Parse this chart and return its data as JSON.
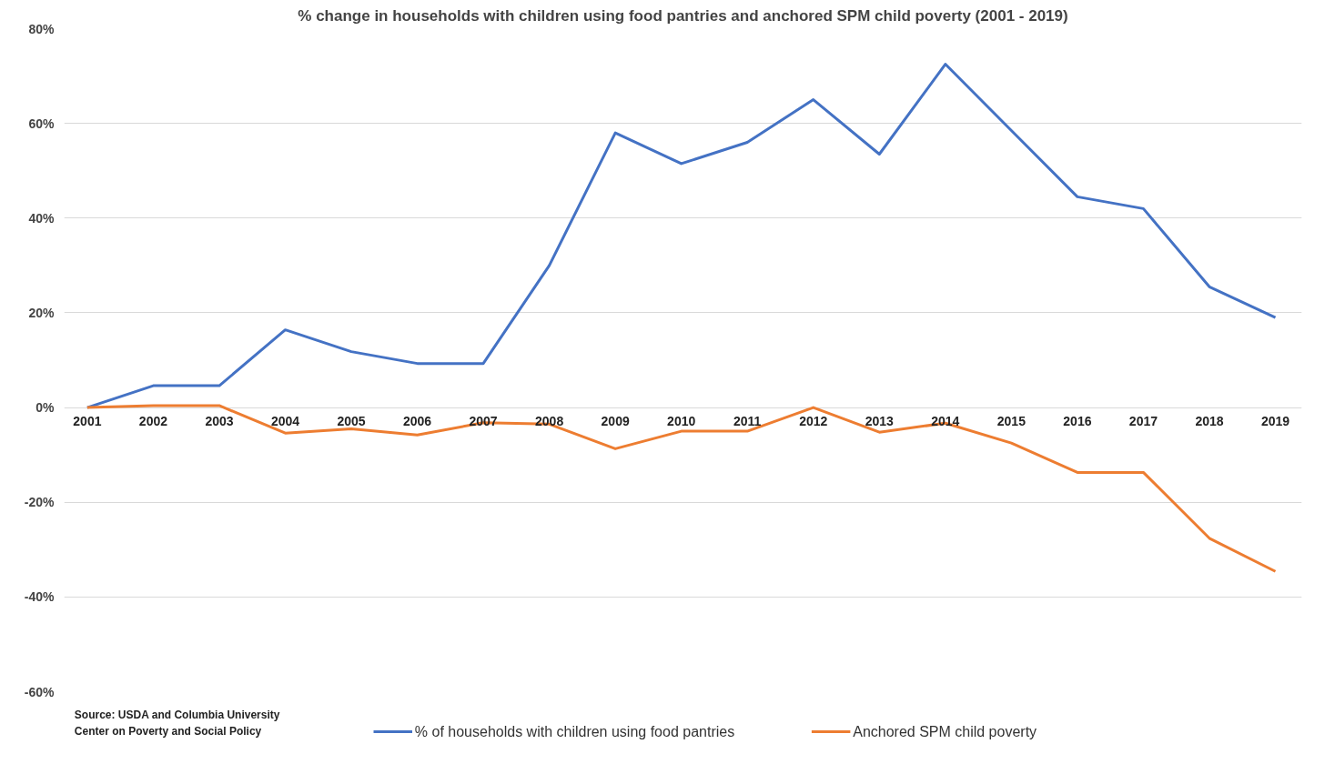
{
  "chart_data": {
    "type": "line",
    "title": "% change in households with children using food pantries and anchored SPM child poverty (2001 - 2019)",
    "categories": [
      "2001",
      "2002",
      "2003",
      "2004",
      "2005",
      "2006",
      "2007",
      "2008",
      "2009",
      "2010",
      "2011",
      "2012",
      "2013",
      "2014",
      "2015",
      "2016",
      "2017",
      "2018",
      "2019"
    ],
    "series": [
      {
        "name": "% of households with children using food pantries",
        "color": "#4472c4",
        "values": [
          0,
          4.6,
          4.6,
          16.4,
          11.8,
          9.3,
          9.3,
          30,
          58,
          51.5,
          56,
          65,
          53.5,
          72.5,
          58.5,
          44.5,
          42,
          25.5,
          19
        ]
      },
      {
        "name": "Anchored SPM child poverty",
        "color": "#ed7d31",
        "values": [
          0,
          0.4,
          0.4,
          -5.4,
          -4.5,
          -5.8,
          -3.2,
          -3.5,
          -8.7,
          -5,
          -5,
          0,
          -5.2,
          -3.3,
          -7.5,
          -13.7,
          -13.7,
          -27.6,
          -34.6
        ]
      }
    ],
    "ylim": [
      -60,
      80
    ],
    "yticks": [
      {
        "value": -60,
        "label": "-60%"
      },
      {
        "value": -40,
        "label": "-40%"
      },
      {
        "value": -20,
        "label": "-20%"
      },
      {
        "value": 0,
        "label": "0%"
      },
      {
        "value": 20,
        "label": "20%"
      },
      {
        "value": 40,
        "label": "40%"
      },
      {
        "value": 60,
        "label": "60%"
      },
      {
        "value": 80,
        "label": "80%"
      }
    ],
    "grid": "y",
    "legend": "bottom",
    "marker": "none",
    "line_style": "solid",
    "annotations": [
      "Source: USDA and Columbia University\nCenter on Poverty and Social Policy"
    ]
  }
}
